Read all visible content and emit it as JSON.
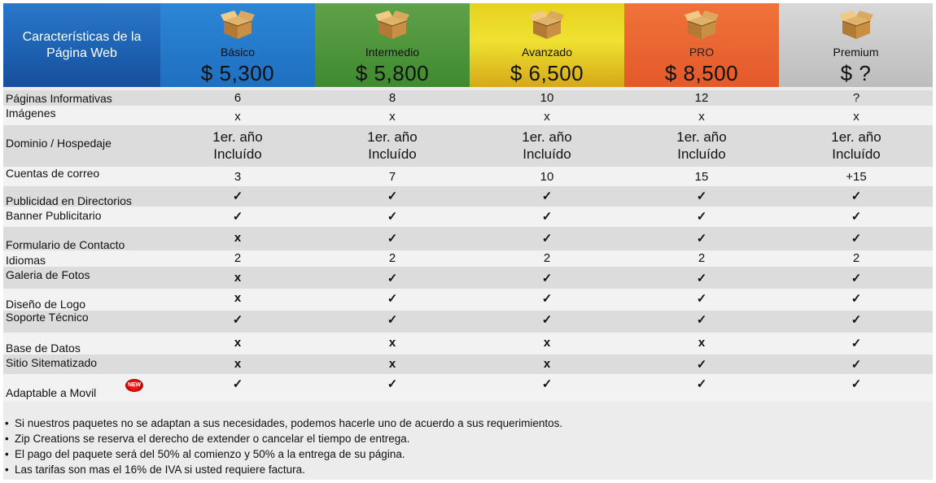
{
  "header": {
    "title": "Características de la Página Web",
    "plans": [
      {
        "name": "Básico",
        "price": "$ 5,300"
      },
      {
        "name": "Intermedio",
        "price": "$ 5,800"
      },
      {
        "name": "Avanzado",
        "price": "$ 6,500"
      },
      {
        "name": "PRO",
        "price": "$ 8,500"
      },
      {
        "name": "Premium",
        "price": "$ ?"
      }
    ],
    "icon": "box-icon"
  },
  "rows": [
    {
      "label": "Páginas Informativas",
      "values": [
        "6",
        "8",
        "10",
        "12",
        "?"
      ]
    },
    {
      "label": "Imágenes",
      "values": [
        "x",
        "x",
        "x",
        "x",
        "x"
      ]
    },
    {
      "label": "Dominio / Hospedaje",
      "values": [
        "1er. año Incluído",
        "1er. año Incluído",
        "1er. año Incluído",
        "1er. año Incluído",
        "1er. año Incluído"
      ]
    },
    {
      "label": "Cuentas de correo",
      "values": [
        "3",
        "7",
        "10",
        "15",
        "+15"
      ]
    },
    {
      "label": "Publicidad en Directorios",
      "values": [
        "✓",
        "✓",
        "✓",
        "✓",
        "✓"
      ]
    },
    {
      "label": "Banner Publicitario",
      "values": [
        "✓",
        "✓",
        "✓",
        "✓",
        "✓"
      ]
    },
    {
      "label": "Formulario de Contacto",
      "values": [
        "x",
        "✓",
        "✓",
        "✓",
        "✓"
      ]
    },
    {
      "label": "Idiomas",
      "values": [
        "2",
        "2",
        "2",
        "2",
        "2"
      ]
    },
    {
      "label": "Galeria de Fotos",
      "values": [
        "x",
        "✓",
        "✓",
        "✓",
        "✓"
      ]
    },
    {
      "label": "Diseño de Logo",
      "values": [
        "x",
        "✓",
        "✓",
        "✓",
        "✓"
      ]
    },
    {
      "label": "Soporte Técnico",
      "values": [
        "✓",
        "✓",
        "✓",
        "✓",
        "✓"
      ]
    },
    {
      "label": "Base de Datos",
      "values": [
        "x",
        "x",
        "x",
        "x",
        "✓"
      ]
    },
    {
      "label": "Sitio Sitematizado",
      "values": [
        "x",
        "x",
        "x",
        "✓",
        "✓"
      ]
    },
    {
      "label": "Adaptable a Movil",
      "values": [
        "✓",
        "✓",
        "✓",
        "✓",
        "✓"
      ],
      "badge": "NEW"
    }
  ],
  "notes": [
    "Si nuestros paquetes no se adaptan a sus necesidades, podemos hacerle uno de acuerdo a sus requerimientos.",
    "Zip Creations se reserva el derecho de extender o cancelar el tiempo de entrega.",
    "El pago del paquete será del 50% al comienzo y 50% a la entrega de su página.",
    "Las tarifas son mas el 16% de  IVA si usted requiere factura."
  ],
  "colors": {
    "basico": "#1f6fc0",
    "intermedio": "#3f8a2e",
    "avanzado": "#efe131",
    "pro": "#e4592a",
    "premium": "#c8c8c8"
  }
}
